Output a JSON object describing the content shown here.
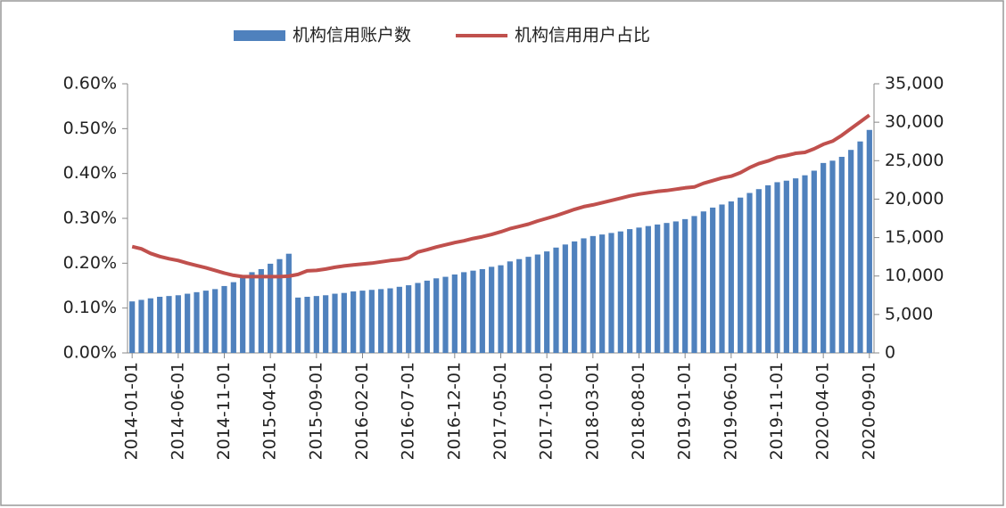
{
  "chart_data": {
    "type": "bar_line",
    "legend": "top",
    "categories": [
      "2014-01-01",
      null,
      null,
      null,
      null,
      "2014-06-01",
      null,
      null,
      null,
      null,
      "2014-11-01",
      null,
      null,
      null,
      null,
      "2015-04-01",
      null,
      null,
      null,
      null,
      "2015-09-01",
      null,
      null,
      null,
      null,
      "2016-02-01",
      null,
      null,
      null,
      null,
      "2016-07-01",
      null,
      null,
      null,
      null,
      "2016-12-01",
      null,
      null,
      null,
      null,
      "2017-05-01",
      null,
      null,
      null,
      null,
      "2017-10-01",
      null,
      null,
      null,
      null,
      "2018-03-01",
      null,
      null,
      null,
      null,
      "2018-08-01",
      null,
      null,
      null,
      null,
      "2019-01-01",
      null,
      null,
      null,
      null,
      "2019-06-01",
      null,
      null,
      null,
      null,
      "2019-11-01",
      null,
      null,
      null,
      null,
      "2020-04-01",
      null,
      null,
      null,
      null,
      "2020-09-01"
    ],
    "series": [
      {
        "name": "机构信用账户数",
        "type": "bar",
        "axis": "y2",
        "color": "#4f81bd",
        "values": [
          6700,
          6900,
          7100,
          7300,
          7400,
          7500,
          7700,
          7900,
          8100,
          8300,
          8700,
          9200,
          9800,
          10500,
          10900,
          11600,
          12200,
          12900,
          7200,
          7300,
          7400,
          7500,
          7700,
          7800,
          8000,
          8100,
          8200,
          8300,
          8400,
          8600,
          8800,
          9100,
          9400,
          9700,
          9900,
          10200,
          10500,
          10700,
          10900,
          11200,
          11400,
          11900,
          12200,
          12500,
          12800,
          13200,
          13700,
          14100,
          14500,
          14900,
          15200,
          15400,
          15600,
          15800,
          16100,
          16300,
          16500,
          16700,
          16900,
          17100,
          17400,
          17800,
          18400,
          18900,
          19300,
          19700,
          20200,
          20800,
          21300,
          21800,
          22200,
          22400,
          22700,
          23100,
          23700,
          24700,
          25000,
          25500,
          26400,
          27500,
          29000
        ]
      },
      {
        "name": "机构信用用户占比",
        "type": "line",
        "axis": "y",
        "color": "#c0504d",
        "values": [
          0.237,
          0.232,
          0.222,
          0.215,
          0.21,
          0.206,
          0.2,
          0.195,
          0.19,
          0.184,
          0.178,
          0.173,
          0.17,
          0.17,
          0.17,
          0.17,
          0.17,
          0.171,
          0.175,
          0.183,
          0.184,
          0.187,
          0.191,
          0.194,
          0.196,
          0.198,
          0.2,
          0.203,
          0.206,
          0.208,
          0.212,
          0.225,
          0.23,
          0.236,
          0.241,
          0.246,
          0.25,
          0.255,
          0.259,
          0.264,
          0.27,
          0.277,
          0.282,
          0.287,
          0.294,
          0.3,
          0.306,
          0.313,
          0.32,
          0.326,
          0.33,
          0.335,
          0.34,
          0.345,
          0.35,
          0.354,
          0.357,
          0.36,
          0.362,
          0.365,
          0.368,
          0.37,
          0.378,
          0.384,
          0.39,
          0.394,
          0.402,
          0.413,
          0.422,
          0.428,
          0.436,
          0.44,
          0.445,
          0.447,
          0.455,
          0.465,
          0.472,
          0.485,
          0.5,
          0.515,
          0.53
        ]
      }
    ],
    "ylim": [
      0,
      0.6
    ],
    "yticks": [
      {
        "value": 0,
        "label": "0.00%"
      },
      {
        "value": 0.1,
        "label": "0.10%"
      },
      {
        "value": 0.2,
        "label": "0.20%"
      },
      {
        "value": 0.3,
        "label": "0.30%"
      },
      {
        "value": 0.4,
        "label": "0.40%"
      },
      {
        "value": 0.5,
        "label": "0.50%"
      },
      {
        "value": 0.6,
        "label": "0.60%"
      }
    ],
    "y2lim": [
      0,
      35000
    ],
    "y2ticks": [
      0,
      {
        "value": 5000,
        "label": "5,000"
      },
      {
        "value": 10000,
        "label": "10,000"
      },
      {
        "value": 15000,
        "label": "15,000"
      },
      {
        "value": 20000,
        "label": "20,000"
      },
      {
        "value": 25000,
        "label": "25,000"
      },
      {
        "value": 30000,
        "label": "30,000"
      },
      {
        "value": 35000,
        "label": "35,000"
      }
    ]
  }
}
